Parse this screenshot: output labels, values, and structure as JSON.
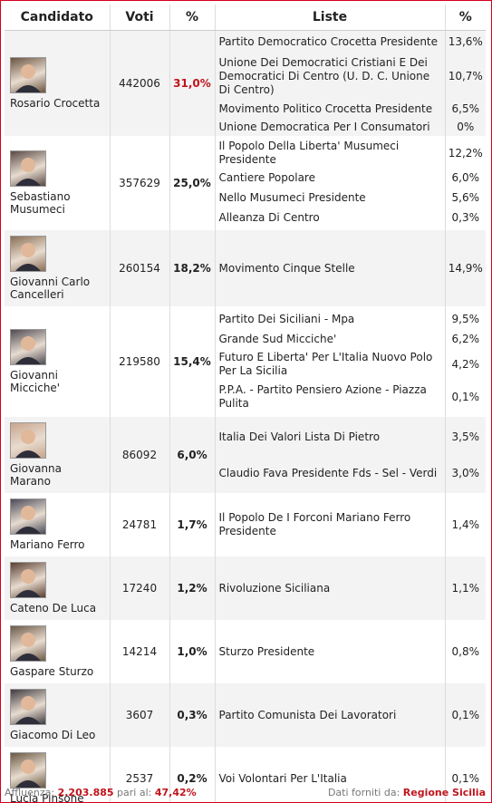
{
  "headers": {
    "candidato": "Candidato",
    "voti": "Voti",
    "pct": "%",
    "liste": "Liste",
    "lpct": "%"
  },
  "rows": [
    {
      "name": "Rosario Crocetta",
      "votes": "442006",
      "pct": "31,0%",
      "win": true,
      "photo": "portrait-crocetta",
      "lists": [
        {
          "name": "Partito Democratico Crocetta Presidente",
          "pct": "13,6%"
        },
        {
          "name": "Unione Dei Democratici Cristiani E Dei Democratici Di Centro (U. D. C. Unione Di Centro)",
          "pct": "10,7%"
        },
        {
          "name": "Movimento Politico Crocetta Presidente",
          "pct": "6,5%"
        },
        {
          "name": "Unione Democratica Per I Consumatori",
          "pct": "0%"
        }
      ]
    },
    {
      "name": "Sebastiano Musumeci",
      "votes": "357629",
      "pct": "25,0%",
      "win": false,
      "photo": "portrait-musumeci",
      "lists": [
        {
          "name": "Il Popolo Della Liberta' Musumeci Presidente",
          "pct": "12,2%"
        },
        {
          "name": "Cantiere Popolare",
          "pct": "6,0%"
        },
        {
          "name": "Nello Musumeci Presidente",
          "pct": "5,6%"
        },
        {
          "name": "Alleanza Di Centro",
          "pct": "0,3%"
        }
      ]
    },
    {
      "name": "Giovanni Carlo Cancelleri",
      "votes": "260154",
      "pct": "18,2%",
      "win": false,
      "photo": "portrait-cancelleri",
      "lists": [
        {
          "name": "Movimento Cinque Stelle",
          "pct": "14,9%"
        }
      ]
    },
    {
      "name": "Giovanni Micciche'",
      "votes": "219580",
      "pct": "15,4%",
      "win": false,
      "photo": "portrait-micciche",
      "lists": [
        {
          "name": "Partito Dei Siciliani - Mpa",
          "pct": "9,5%"
        },
        {
          "name": "Grande Sud Micciche'",
          "pct": "6,2%"
        },
        {
          "name": "Futuro E Liberta' Per L'Italia Nuovo Polo Per La Sicilia",
          "pct": "4,2%"
        },
        {
          "name": "P.P.A. - Partito Pensiero Azione - Piazza Pulita",
          "pct": "0,1%"
        }
      ]
    },
    {
      "name": "Giovanna Marano",
      "votes": "86092",
      "pct": "6,0%",
      "win": false,
      "photo": "portrait-marano",
      "lists": [
        {
          "name": "Italia Dei Valori Lista Di Pietro",
          "pct": "3,5%"
        },
        {
          "name": "Claudio Fava Presidente Fds - Sel - Verdi",
          "pct": "3,0%"
        }
      ]
    },
    {
      "name": "Mariano Ferro",
      "votes": "24781",
      "pct": "1,7%",
      "win": false,
      "photo": "portrait-ferro",
      "lists": [
        {
          "name": "Il Popolo De I Forconi Mariano Ferro Presidente",
          "pct": "1,4%"
        }
      ]
    },
    {
      "name": "Cateno De Luca",
      "votes": "17240",
      "pct": "1,2%",
      "win": false,
      "photo": "portrait-deluca",
      "lists": [
        {
          "name": "Rivoluzione Siciliana",
          "pct": "1,1%"
        }
      ]
    },
    {
      "name": "Gaspare Sturzo",
      "votes": "14214",
      "pct": "1,0%",
      "win": false,
      "photo": "portrait-sturzo",
      "lists": [
        {
          "name": "Sturzo Presidente",
          "pct": "0,8%"
        }
      ]
    },
    {
      "name": "Giacomo Di Leo",
      "votes": "3607",
      "pct": "0,3%",
      "win": false,
      "photo": "portrait-dileo",
      "lists": [
        {
          "name": "Partito Comunista Dei Lavoratori",
          "pct": "0,1%"
        }
      ]
    },
    {
      "name": "Lucia Pinsone",
      "votes": "2537",
      "pct": "0,2%",
      "win": false,
      "photo": "portrait-pinsone",
      "lists": [
        {
          "name": "Voi Volontari Per L'Italia",
          "pct": "0,1%"
        }
      ]
    }
  ],
  "footer": {
    "affluenza_label": "Affluenza:",
    "affluenza_value": "2.203.885",
    "pari_label": "pari al:",
    "pari_value": "47,42%",
    "source_label": "Dati forniti da:",
    "source_value": "Regione Sicilia"
  },
  "colors": {
    "accent": "#c0141c",
    "stripe": "#f3f3f3",
    "border": "#d6001c"
  }
}
